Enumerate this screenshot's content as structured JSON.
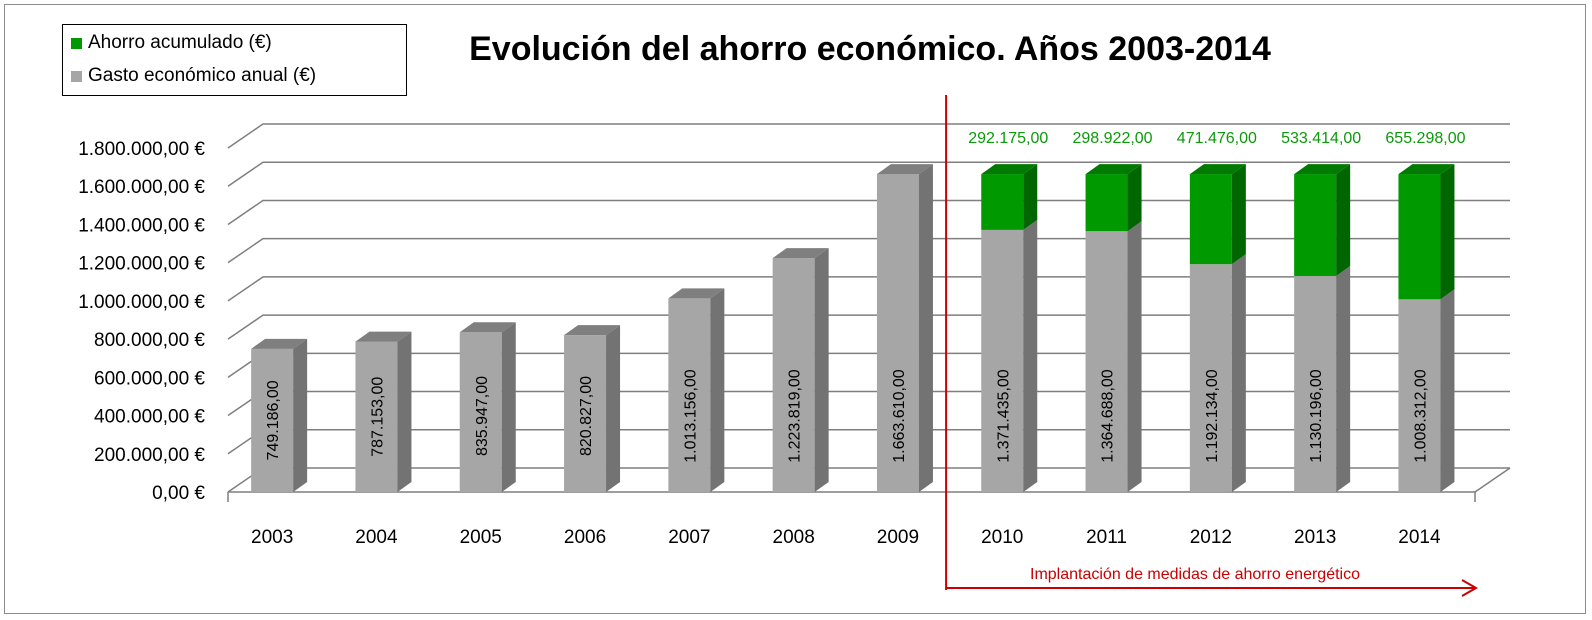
{
  "legend": {
    "savings_label": "Ahorro acumulado (€)",
    "expense_label": "Gasto económico  anual (€)"
  },
  "colors": {
    "savings": "#009900",
    "savings_side": "#006600",
    "savings_top": "#007a00",
    "expense": "#a6a6a6",
    "expense_side": "#737373",
    "expense_top": "#7f7f7f",
    "grid": "#7f7f7f",
    "annotation": "#cc0000",
    "top_label": "#0a9a0a"
  },
  "chart_data": {
    "type": "bar",
    "stacked": true,
    "three_d": true,
    "title": "Evolución del ahorro económico. Años 2003-2014",
    "categories": [
      "2003",
      "2004",
      "2005",
      "2006",
      "2007",
      "2008",
      "2009",
      "2010",
      "2011",
      "2012",
      "2013",
      "2014"
    ],
    "series": [
      {
        "name": "Gasto económico  anual (€)",
        "values": [
          749186,
          787153,
          835947,
          820827,
          1013156,
          1223819,
          1663610,
          1371435,
          1364688,
          1192134,
          1130196,
          1008312
        ],
        "labels": [
          "749.186,00",
          "787.153,00",
          "835.947,00",
          "820.827,00",
          "1.013.156,00",
          "1.223.819,00",
          "1.663.610,00",
          "1.371.435,00",
          "1.364.688,00",
          "1.192.134,00",
          "1.130.196,00",
          "1.008.312,00"
        ]
      },
      {
        "name": "Ahorro acumulado (€)",
        "values": [
          null,
          null,
          null,
          null,
          null,
          null,
          null,
          292175,
          298922,
          471476,
          533414,
          655298
        ],
        "labels": [
          "",
          "",
          "",
          "",
          "",
          "",
          "",
          "292.175,00",
          "298.922,00",
          "471.476,00",
          "533.414,00",
          "655.298,00"
        ]
      }
    ],
    "ylim": [
      0,
      1800000
    ],
    "yticks": [
      0,
      200000,
      400000,
      600000,
      800000,
      1000000,
      1200000,
      1400000,
      1600000,
      1800000
    ],
    "ytick_labels": [
      "0,00 €",
      "200.000,00 €",
      "400.000,00 €",
      "600.000,00 €",
      "800.000,00 €",
      "1.000.000,00 €",
      "1.200.000,00 €",
      "1.400.000,00 €",
      "1.600.000,00 €",
      "1.800.000,00 €"
    ],
    "grid": true,
    "legend_position": "top-left",
    "annotation": {
      "text": "Implantación de medidas de ahorro energético",
      "start_category": "2010",
      "end_category": "2014"
    }
  }
}
